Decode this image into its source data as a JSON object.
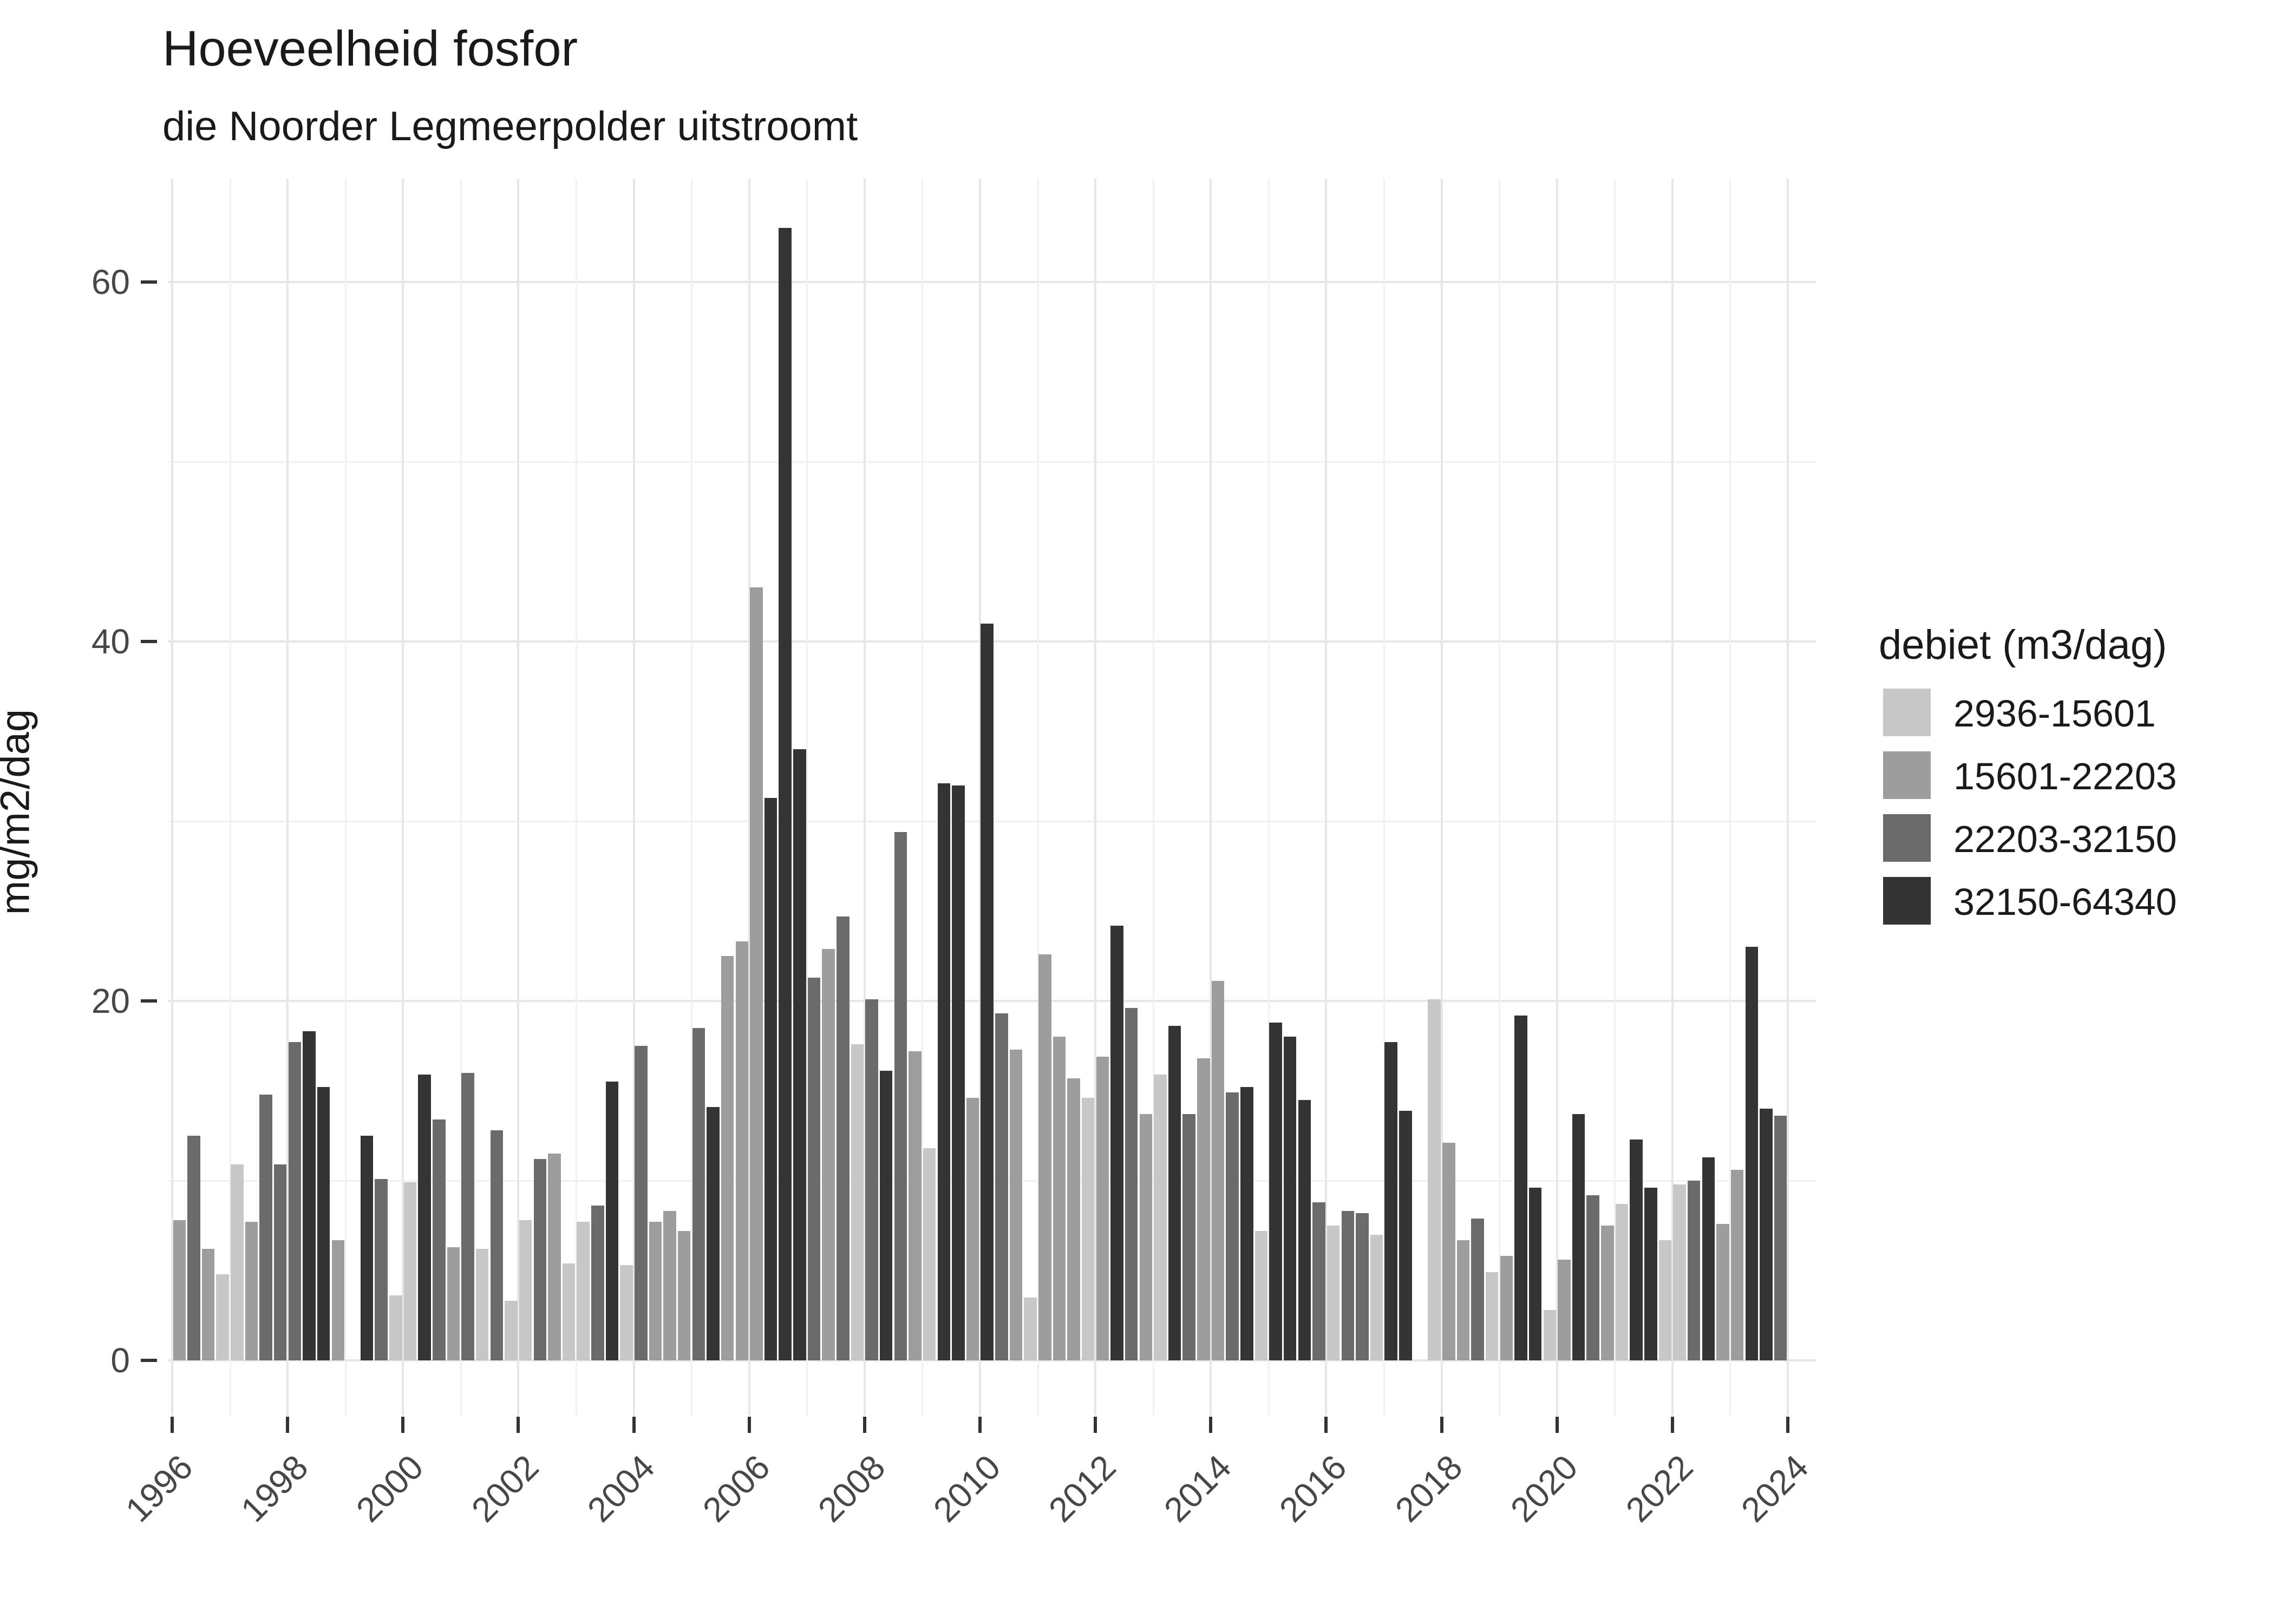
{
  "title": "Hoeveelheid fosfor",
  "subtitle": "die Noorder Legmeerpolder uitstroomt",
  "y_axis": {
    "label": "mg/m2/dag",
    "major_ticks": [
      0,
      20,
      40,
      60
    ],
    "minor_gridlines": [
      10,
      30,
      50
    ],
    "range": [
      0,
      64
    ]
  },
  "x_axis": {
    "tick_years": [
      1996,
      1998,
      2000,
      2002,
      2004,
      2006,
      2008,
      2010,
      2012,
      2014,
      2016,
      2018,
      2020,
      2022,
      2024
    ],
    "minor_years": [
      1997,
      1999,
      2001,
      2003,
      2005,
      2007,
      2009,
      2011,
      2013,
      2015,
      2017,
      2019,
      2021,
      2023
    ]
  },
  "legend": {
    "title": "debiet (m3/dag)",
    "entries": [
      {
        "label": "2936-15601",
        "color": "#c7c7c7"
      },
      {
        "label": "15601-22203",
        "color": "#9d9d9d"
      },
      {
        "label": "22203-32150",
        "color": "#6b6b6b"
      },
      {
        "label": "32150-64340",
        "color": "#343434"
      }
    ]
  },
  "chart_data": {
    "type": "bar",
    "title": "Hoeveelheid fosfor",
    "subtitle": "die Noorder Legmeerpolder uitstroomt",
    "xlabel": "",
    "ylabel": "mg/m2/dag",
    "ylim": [
      0,
      64
    ],
    "x_unit": "year-quarter",
    "grid": true,
    "legend_position": "right",
    "category_colors": {
      "2936-15601": "#c7c7c7",
      "15601-22203": "#9d9d9d",
      "22203-32150": "#6b6b6b",
      "32150-64340": "#343434"
    },
    "bars": [
      {
        "year": 1996,
        "quarter": 1,
        "value": 7.8,
        "debiet": "15601-22203"
      },
      {
        "year": 1996,
        "quarter": 2,
        "value": 12.5,
        "debiet": "22203-32150"
      },
      {
        "year": 1996,
        "quarter": 3,
        "value": 6.2,
        "debiet": "15601-22203"
      },
      {
        "year": 1996,
        "quarter": 4,
        "value": 4.8,
        "debiet": "2936-15601"
      },
      {
        "year": 1997,
        "quarter": 1,
        "value": 10.9,
        "debiet": "2936-15601"
      },
      {
        "year": 1997,
        "quarter": 2,
        "value": 7.7,
        "debiet": "15601-22203"
      },
      {
        "year": 1997,
        "quarter": 3,
        "value": 14.8,
        "debiet": "22203-32150"
      },
      {
        "year": 1997,
        "quarter": 4,
        "value": 10.9,
        "debiet": "22203-32150"
      },
      {
        "year": 1998,
        "quarter": 1,
        "value": 17.7,
        "debiet": "22203-32150"
      },
      {
        "year": 1998,
        "quarter": 2,
        "value": 18.3,
        "debiet": "32150-64340"
      },
      {
        "year": 1998,
        "quarter": 3,
        "value": 15.2,
        "debiet": "32150-64340"
      },
      {
        "year": 1998,
        "quarter": 4,
        "value": 6.7,
        "debiet": "15601-22203"
      },
      {
        "year": 1999,
        "quarter": 2,
        "value": 12.5,
        "debiet": "32150-64340"
      },
      {
        "year": 1999,
        "quarter": 3,
        "value": 10.1,
        "debiet": "22203-32150"
      },
      {
        "year": 1999,
        "quarter": 4,
        "value": 3.6,
        "debiet": "2936-15601"
      },
      {
        "year": 2000,
        "quarter": 1,
        "value": 9.9,
        "debiet": "2936-15601"
      },
      {
        "year": 2000,
        "quarter": 2,
        "value": 15.9,
        "debiet": "32150-64340"
      },
      {
        "year": 2000,
        "quarter": 3,
        "value": 13.4,
        "debiet": "22203-32150"
      },
      {
        "year": 2000,
        "quarter": 4,
        "value": 6.3,
        "debiet": "15601-22203"
      },
      {
        "year": 2001,
        "quarter": 1,
        "value": 16.0,
        "debiet": "22203-32150"
      },
      {
        "year": 2001,
        "quarter": 2,
        "value": 6.2,
        "debiet": "2936-15601"
      },
      {
        "year": 2001,
        "quarter": 3,
        "value": 12.8,
        "debiet": "22203-32150"
      },
      {
        "year": 2001,
        "quarter": 4,
        "value": 3.3,
        "debiet": "2936-15601"
      },
      {
        "year": 2002,
        "quarter": 1,
        "value": 7.8,
        "debiet": "2936-15601"
      },
      {
        "year": 2002,
        "quarter": 2,
        "value": 11.2,
        "debiet": "22203-32150"
      },
      {
        "year": 2002,
        "quarter": 3,
        "value": 11.5,
        "debiet": "15601-22203"
      },
      {
        "year": 2002,
        "quarter": 4,
        "value": 5.4,
        "debiet": "2936-15601"
      },
      {
        "year": 2003,
        "quarter": 1,
        "value": 7.7,
        "debiet": "2936-15601"
      },
      {
        "year": 2003,
        "quarter": 2,
        "value": 8.6,
        "debiet": "22203-32150"
      },
      {
        "year": 2003,
        "quarter": 3,
        "value": 15.5,
        "debiet": "32150-64340"
      },
      {
        "year": 2003,
        "quarter": 4,
        "value": 5.3,
        "debiet": "2936-15601"
      },
      {
        "year": 2004,
        "quarter": 1,
        "value": 17.5,
        "debiet": "22203-32150"
      },
      {
        "year": 2004,
        "quarter": 2,
        "value": 7.7,
        "debiet": "15601-22203"
      },
      {
        "year": 2004,
        "quarter": 3,
        "value": 8.3,
        "debiet": "15601-22203"
      },
      {
        "year": 2004,
        "quarter": 4,
        "value": 7.2,
        "debiet": "15601-22203"
      },
      {
        "year": 2005,
        "quarter": 1,
        "value": 18.5,
        "debiet": "22203-32150"
      },
      {
        "year": 2005,
        "quarter": 2,
        "value": 14.1,
        "debiet": "32150-64340"
      },
      {
        "year": 2005,
        "quarter": 3,
        "value": 22.5,
        "debiet": "15601-22203"
      },
      {
        "year": 2005,
        "quarter": 4,
        "value": 23.3,
        "debiet": "15601-22203"
      },
      {
        "year": 2006,
        "quarter": 1,
        "value": 43.0,
        "debiet": "15601-22203"
      },
      {
        "year": 2006,
        "quarter": 2,
        "value": 31.3,
        "debiet": "32150-64340"
      },
      {
        "year": 2006,
        "quarter": 3,
        "value": 63.0,
        "debiet": "32150-64340"
      },
      {
        "year": 2006,
        "quarter": 4,
        "value": 34.0,
        "debiet": "32150-64340"
      },
      {
        "year": 2007,
        "quarter": 1,
        "value": 21.3,
        "debiet": "22203-32150"
      },
      {
        "year": 2007,
        "quarter": 2,
        "value": 22.9,
        "debiet": "15601-22203"
      },
      {
        "year": 2007,
        "quarter": 3,
        "value": 24.7,
        "debiet": "22203-32150"
      },
      {
        "year": 2007,
        "quarter": 4,
        "value": 17.6,
        "debiet": "2936-15601"
      },
      {
        "year": 2008,
        "quarter": 1,
        "value": 20.1,
        "debiet": "22203-32150"
      },
      {
        "year": 2008,
        "quarter": 2,
        "value": 16.1,
        "debiet": "32150-64340"
      },
      {
        "year": 2008,
        "quarter": 3,
        "value": 29.4,
        "debiet": "22203-32150"
      },
      {
        "year": 2008,
        "quarter": 4,
        "value": 17.2,
        "debiet": "15601-22203"
      },
      {
        "year": 2009,
        "quarter": 1,
        "value": 11.8,
        "debiet": "2936-15601"
      },
      {
        "year": 2009,
        "quarter": 2,
        "value": 32.1,
        "debiet": "32150-64340"
      },
      {
        "year": 2009,
        "quarter": 3,
        "value": 32.0,
        "debiet": "32150-64340"
      },
      {
        "year": 2009,
        "quarter": 4,
        "value": 14.6,
        "debiet": "15601-22203"
      },
      {
        "year": 2010,
        "quarter": 1,
        "value": 41.0,
        "debiet": "32150-64340"
      },
      {
        "year": 2010,
        "quarter": 2,
        "value": 19.3,
        "debiet": "22203-32150"
      },
      {
        "year": 2010,
        "quarter": 3,
        "value": 17.3,
        "debiet": "15601-22203"
      },
      {
        "year": 2010,
        "quarter": 4,
        "value": 3.5,
        "debiet": "2936-15601"
      },
      {
        "year": 2011,
        "quarter": 1,
        "value": 22.6,
        "debiet": "15601-22203"
      },
      {
        "year": 2011,
        "quarter": 2,
        "value": 18.0,
        "debiet": "15601-22203"
      },
      {
        "year": 2011,
        "quarter": 3,
        "value": 15.7,
        "debiet": "15601-22203"
      },
      {
        "year": 2011,
        "quarter": 4,
        "value": 14.6,
        "debiet": "2936-15601"
      },
      {
        "year": 2012,
        "quarter": 1,
        "value": 16.9,
        "debiet": "15601-22203"
      },
      {
        "year": 2012,
        "quarter": 2,
        "value": 24.2,
        "debiet": "32150-64340"
      },
      {
        "year": 2012,
        "quarter": 3,
        "value": 19.6,
        "debiet": "22203-32150"
      },
      {
        "year": 2012,
        "quarter": 4,
        "value": 13.7,
        "debiet": "15601-22203"
      },
      {
        "year": 2013,
        "quarter": 1,
        "value": 15.9,
        "debiet": "2936-15601"
      },
      {
        "year": 2013,
        "quarter": 2,
        "value": 18.6,
        "debiet": "32150-64340"
      },
      {
        "year": 2013,
        "quarter": 3,
        "value": 13.7,
        "debiet": "22203-32150"
      },
      {
        "year": 2013,
        "quarter": 4,
        "value": 16.8,
        "debiet": "15601-22203"
      },
      {
        "year": 2014,
        "quarter": 1,
        "value": 21.1,
        "debiet": "15601-22203"
      },
      {
        "year": 2014,
        "quarter": 2,
        "value": 14.9,
        "debiet": "22203-32150"
      },
      {
        "year": 2014,
        "quarter": 3,
        "value": 15.2,
        "debiet": "32150-64340"
      },
      {
        "year": 2014,
        "quarter": 4,
        "value": 7.2,
        "debiet": "2936-15601"
      },
      {
        "year": 2015,
        "quarter": 1,
        "value": 18.8,
        "debiet": "32150-64340"
      },
      {
        "year": 2015,
        "quarter": 2,
        "value": 18.0,
        "debiet": "32150-64340"
      },
      {
        "year": 2015,
        "quarter": 3,
        "value": 14.5,
        "debiet": "32150-64340"
      },
      {
        "year": 2015,
        "quarter": 4,
        "value": 8.8,
        "debiet": "22203-32150"
      },
      {
        "year": 2016,
        "quarter": 1,
        "value": 7.5,
        "debiet": "2936-15601"
      },
      {
        "year": 2016,
        "quarter": 2,
        "value": 8.3,
        "debiet": "22203-32150"
      },
      {
        "year": 2016,
        "quarter": 3,
        "value": 8.2,
        "debiet": "22203-32150"
      },
      {
        "year": 2016,
        "quarter": 4,
        "value": 7.0,
        "debiet": "2936-15601"
      },
      {
        "year": 2017,
        "quarter": 1,
        "value": 17.7,
        "debiet": "32150-64340"
      },
      {
        "year": 2017,
        "quarter": 2,
        "value": 13.9,
        "debiet": "32150-64340"
      },
      {
        "year": 2017,
        "quarter": 4,
        "value": 20.1,
        "debiet": "2936-15601"
      },
      {
        "year": 2018,
        "quarter": 1,
        "value": 12.1,
        "debiet": "15601-22203"
      },
      {
        "year": 2018,
        "quarter": 2,
        "value": 6.7,
        "debiet": "15601-22203"
      },
      {
        "year": 2018,
        "quarter": 3,
        "value": 7.9,
        "debiet": "22203-32150"
      },
      {
        "year": 2018,
        "quarter": 4,
        "value": 4.9,
        "debiet": "2936-15601"
      },
      {
        "year": 2019,
        "quarter": 1,
        "value": 5.8,
        "debiet": "15601-22203"
      },
      {
        "year": 2019,
        "quarter": 2,
        "value": 19.2,
        "debiet": "32150-64340"
      },
      {
        "year": 2019,
        "quarter": 3,
        "value": 9.6,
        "debiet": "32150-64340"
      },
      {
        "year": 2019,
        "quarter": 4,
        "value": 2.8,
        "debiet": "2936-15601"
      },
      {
        "year": 2020,
        "quarter": 1,
        "value": 5.6,
        "debiet": "15601-22203"
      },
      {
        "year": 2020,
        "quarter": 2,
        "value": 13.7,
        "debiet": "32150-64340"
      },
      {
        "year": 2020,
        "quarter": 3,
        "value": 9.2,
        "debiet": "22203-32150"
      },
      {
        "year": 2020,
        "quarter": 4,
        "value": 7.5,
        "debiet": "15601-22203"
      },
      {
        "year": 2021,
        "quarter": 1,
        "value": 8.7,
        "debiet": "2936-15601"
      },
      {
        "year": 2021,
        "quarter": 2,
        "value": 12.3,
        "debiet": "32150-64340"
      },
      {
        "year": 2021,
        "quarter": 3,
        "value": 9.6,
        "debiet": "32150-64340"
      },
      {
        "year": 2021,
        "quarter": 4,
        "value": 6.7,
        "debiet": "2936-15601"
      },
      {
        "year": 2022,
        "quarter": 1,
        "value": 9.8,
        "debiet": "2936-15601"
      },
      {
        "year": 2022,
        "quarter": 2,
        "value": 10.0,
        "debiet": "22203-32150"
      },
      {
        "year": 2022,
        "quarter": 3,
        "value": 11.3,
        "debiet": "32150-64340"
      },
      {
        "year": 2022,
        "quarter": 4,
        "value": 7.6,
        "debiet": "15601-22203"
      },
      {
        "year": 2023,
        "quarter": 1,
        "value": 10.6,
        "debiet": "15601-22203"
      },
      {
        "year": 2023,
        "quarter": 2,
        "value": 23.0,
        "debiet": "32150-64340"
      },
      {
        "year": 2023,
        "quarter": 3,
        "value": 14.0,
        "debiet": "32150-64340"
      },
      {
        "year": 2023,
        "quarter": 4,
        "value": 13.6,
        "debiet": "22203-32150"
      }
    ]
  }
}
